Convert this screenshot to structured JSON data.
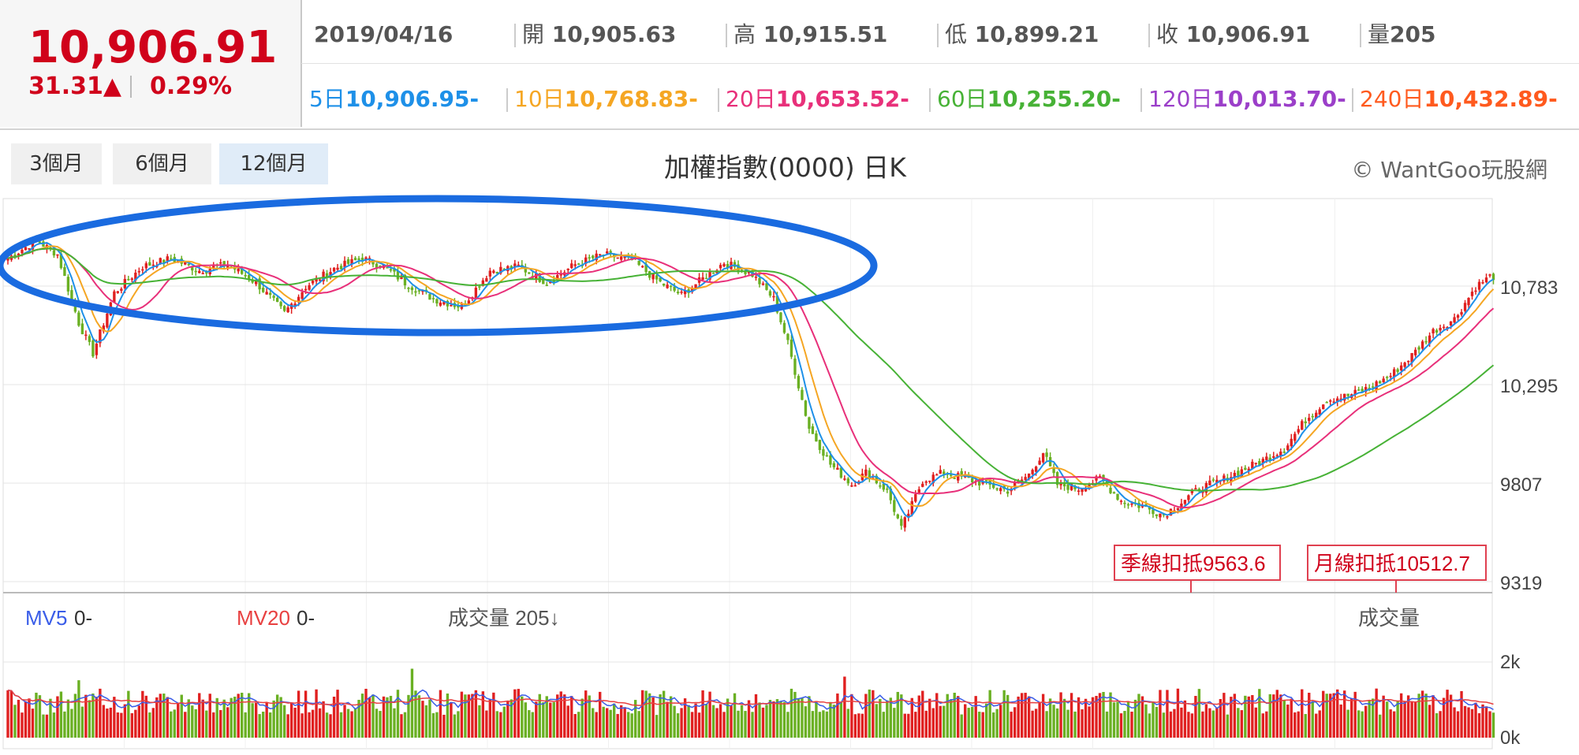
{
  "quote": {
    "price": "10,906.91",
    "change": "31.31▲",
    "percent": "0.29%",
    "date": "2019/04/16",
    "open_label": "開",
    "open": "10,905.63",
    "high_label": "高",
    "high": "10,915.51",
    "low_label": "低",
    "low": "10,899.21",
    "close_label": "收",
    "close": "10,906.91",
    "vol_label": "量",
    "vol": "205"
  },
  "ma": [
    {
      "label": "5日",
      "value": "10,906.95-",
      "color": "#1e90e8"
    },
    {
      "label": "10日",
      "value": "10,768.83-",
      "color": "#f5a623"
    },
    {
      "label": "20日",
      "value": "10,653.52-",
      "color": "#e8307a"
    },
    {
      "label": "60日",
      "value": "10,255.20-",
      "color": "#47b236"
    },
    {
      "label": "120日",
      "value": "10,013.70-",
      "color": "#9b3fc9"
    },
    {
      "label": "240日",
      "value": "10,432.89-",
      "color": "#ff5a1e"
    }
  ],
  "tabs": [
    "3個月",
    "6個月",
    "12個月"
  ],
  "active_tab": 2,
  "title": "加權指數(0000) 日K",
  "brand": "© WantGoo玩股網",
  "volume_panel": {
    "mv5_label": "MV5",
    "mv5_value": "0-",
    "mv5_color": "#3a5de8",
    "mv20_label": "MV20",
    "mv20_value": "0-",
    "mv20_color": "#e84040",
    "vol_text": "成交量 205↓",
    "vol_title": "成交量"
  },
  "annotations": {
    "season": "季線扣抵9563.6",
    "month": "月線扣抵10512.7"
  },
  "chart_data": {
    "type": "candlestick",
    "y_ticks": [
      "10,783",
      "10,295",
      "9807",
      "9319"
    ],
    "y_tick_values": [
      10783,
      10295,
      9807,
      9319
    ],
    "vol_ticks": [
      "2k",
      "0k"
    ],
    "vol_tick_values": [
      2000,
      0
    ],
    "up_color": "#e02020",
    "down_color": "#6ab023",
    "ellipse_color": "#1a6be0",
    "close_path": [
      [
        0,
        10920
      ],
      [
        8,
        11010
      ],
      [
        14,
        10940
      ],
      [
        20,
        10600
      ],
      [
        24,
        10450
      ],
      [
        30,
        10750
      ],
      [
        38,
        10880
      ],
      [
        46,
        10920
      ],
      [
        54,
        10860
      ],
      [
        62,
        10890
      ],
      [
        70,
        10800
      ],
      [
        78,
        10650
      ],
      [
        84,
        10780
      ],
      [
        92,
        10870
      ],
      [
        100,
        10920
      ],
      [
        106,
        10880
      ],
      [
        112,
        10800
      ],
      [
        120,
        10720
      ],
      [
        128,
        10680
      ],
      [
        136,
        10860
      ],
      [
        144,
        10880
      ],
      [
        152,
        10800
      ],
      [
        160,
        10890
      ],
      [
        168,
        10940
      ],
      [
        176,
        10910
      ],
      [
        184,
        10800
      ],
      [
        190,
        10740
      ],
      [
        196,
        10820
      ],
      [
        202,
        10900
      ],
      [
        210,
        10840
      ],
      [
        216,
        10720
      ],
      [
        220,
        10500
      ],
      [
        226,
        10080
      ],
      [
        232,
        9900
      ],
      [
        238,
        9800
      ],
      [
        242,
        9860
      ],
      [
        248,
        9770
      ],
      [
        252,
        9580
      ],
      [
        258,
        9820
      ],
      [
        264,
        9860
      ],
      [
        270,
        9830
      ],
      [
        276,
        9800
      ],
      [
        282,
        9770
      ],
      [
        288,
        9850
      ],
      [
        292,
        9960
      ],
      [
        296,
        9800
      ],
      [
        302,
        9780
      ],
      [
        308,
        9830
      ],
      [
        314,
        9720
      ],
      [
        320,
        9690
      ],
      [
        326,
        9650
      ],
      [
        330,
        9700
      ],
      [
        336,
        9780
      ],
      [
        342,
        9820
      ],
      [
        348,
        9870
      ],
      [
        354,
        9920
      ],
      [
        360,
        9980
      ],
      [
        366,
        10120
      ],
      [
        372,
        10220
      ],
      [
        378,
        10240
      ],
      [
        384,
        10280
      ],
      [
        390,
        10340
      ],
      [
        396,
        10440
      ],
      [
        402,
        10560
      ],
      [
        408,
        10620
      ],
      [
        414,
        10780
      ],
      [
        418,
        10830
      ]
    ]
  }
}
